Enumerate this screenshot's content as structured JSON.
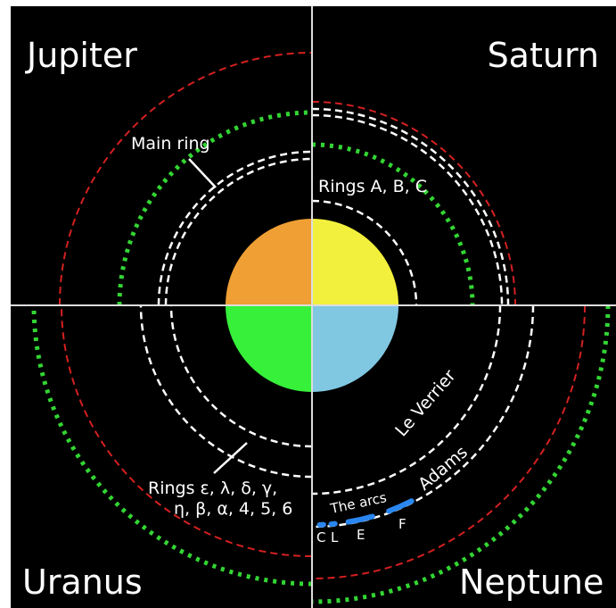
{
  "quadrants": {
    "top_left": "Jupiter",
    "top_right": "Saturn",
    "bottom_left": "Uranus",
    "bottom_right": "Neptune"
  },
  "annotations": {
    "jupiter_ring": "Main ring",
    "saturn_rings": "Rings A, B, C",
    "uranus_rings_line1": "Rings ε, λ, δ, γ,",
    "uranus_rings_line2": "η, β, α, 4, 5, 6",
    "neptune_le_verrier": "Le Verrier",
    "neptune_adams": "Adams",
    "neptune_arcs": "The arcs",
    "arc_c": "C",
    "arc_l": "L",
    "arc_e": "E",
    "arc_f": "F"
  }
}
